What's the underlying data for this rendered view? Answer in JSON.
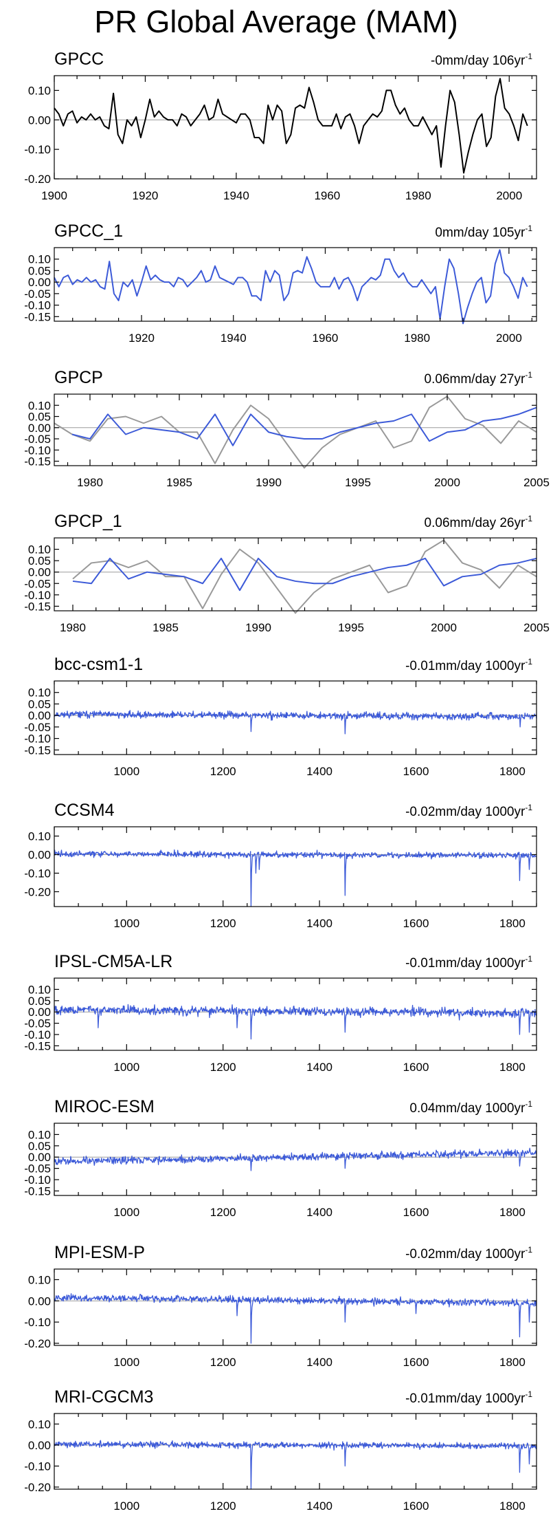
{
  "title": "PR Global Average (MAM)",
  "colors": {
    "obs": "#000000",
    "model": "#3c5ad8",
    "gray": "#999999",
    "zero": "#9a9a9a"
  },
  "chart_data": [
    {
      "type": "line",
      "title": "GPCC",
      "trend": "-0mm/day 106yr",
      "trend_sup": "-1",
      "xlim": [
        1900,
        2006
      ],
      "ylim": [
        -0.2,
        0.15
      ],
      "xticks": [
        "1900",
        "1920",
        "1940",
        "1960",
        "1980",
        "2000"
      ],
      "yticks": [
        "0.10",
        "0.00",
        "-0.10",
        "-0.20"
      ],
      "series": [
        {
          "name": "GPCC",
          "color": "#000000",
          "x_start": 1900,
          "x_step": 1,
          "values": [
            0.04,
            0.02,
            -0.02,
            0.02,
            0.03,
            -0.01,
            0.01,
            0.0,
            0.02,
            0.0,
            0.01,
            -0.02,
            -0.03,
            0.09,
            -0.05,
            -0.08,
            0.0,
            -0.02,
            0.01,
            -0.06,
            0.0,
            0.07,
            0.01,
            0.03,
            0.01,
            0.0,
            0.0,
            -0.02,
            0.02,
            0.01,
            -0.02,
            0.0,
            0.02,
            0.05,
            0.0,
            0.01,
            0.07,
            0.02,
            0.01,
            0.0,
            -0.01,
            0.02,
            0.02,
            0.0,
            -0.06,
            -0.06,
            -0.08,
            0.05,
            0.0,
            0.05,
            0.03,
            -0.08,
            -0.05,
            0.04,
            0.05,
            0.04,
            0.11,
            0.06,
            0.0,
            -0.02,
            -0.02,
            -0.02,
            0.02,
            -0.03,
            0.01,
            0.02,
            -0.02,
            -0.08,
            -0.02,
            0.0,
            0.02,
            0.01,
            0.03,
            0.1,
            0.1,
            0.05,
            0.02,
            0.04,
            0.0,
            -0.02,
            -0.02,
            0.01,
            -0.02,
            -0.05,
            -0.02,
            -0.16,
            -0.02,
            0.1,
            0.06,
            -0.05,
            -0.18,
            -0.11,
            -0.05,
            0.0,
            0.02,
            -0.09,
            -0.06,
            0.08,
            0.14,
            0.04,
            0.02,
            -0.02,
            -0.07,
            0.02,
            -0.02
          ]
        }
      ]
    },
    {
      "type": "line",
      "title": "GPCC_1",
      "trend": "0mm/day 105yr",
      "trend_sup": "-1",
      "xlim": [
        1901,
        2006
      ],
      "ylim": [
        -0.17,
        0.15
      ],
      "xticks": [
        "1920",
        "1940",
        "1960",
        "1980",
        "2000"
      ],
      "yticks": [
        "0.10",
        "0.05",
        "0.00",
        "-0.05",
        "-0.10",
        "-0.15"
      ],
      "series": [
        {
          "name": "GPCC_1",
          "color": "#3c5ad8",
          "x_start": 1901,
          "x_step": 1,
          "values": [
            0.02,
            -0.02,
            0.02,
            0.03,
            -0.01,
            0.01,
            0.0,
            0.02,
            0.0,
            0.01,
            -0.02,
            -0.03,
            0.09,
            -0.05,
            -0.08,
            0.0,
            -0.02,
            0.01,
            -0.06,
            0.0,
            0.07,
            0.01,
            0.03,
            0.01,
            0.0,
            0.0,
            -0.02,
            0.02,
            0.01,
            -0.02,
            0.0,
            0.02,
            0.05,
            0.0,
            0.01,
            0.07,
            0.02,
            0.01,
            0.0,
            -0.01,
            0.02,
            0.02,
            0.0,
            -0.06,
            -0.06,
            -0.08,
            0.05,
            0.0,
            0.05,
            0.03,
            -0.08,
            -0.05,
            0.04,
            0.05,
            0.04,
            0.11,
            0.06,
            0.0,
            -0.02,
            -0.02,
            -0.02,
            0.02,
            -0.03,
            0.01,
            0.02,
            -0.02,
            -0.08,
            -0.02,
            0.0,
            0.02,
            0.01,
            0.03,
            0.1,
            0.1,
            0.05,
            0.02,
            0.04,
            0.0,
            -0.02,
            -0.02,
            0.01,
            -0.02,
            -0.05,
            -0.02,
            -0.16,
            -0.02,
            0.1,
            0.06,
            -0.05,
            -0.18,
            -0.11,
            -0.05,
            0.0,
            0.02,
            -0.09,
            -0.06,
            0.08,
            0.14,
            0.04,
            0.02,
            -0.02,
            -0.07,
            0.02,
            -0.02
          ]
        }
      ]
    },
    {
      "type": "line",
      "title": "GPCP",
      "trend": "0.06mm/day 27yr",
      "trend_sup": "-1",
      "xlim": [
        1978,
        2005
      ],
      "ylim": [
        -0.17,
        0.15
      ],
      "xticks": [
        "1980",
        "1985",
        "1990",
        "1995",
        "2000",
        "2005"
      ],
      "yticks": [
        "0.10",
        "0.05",
        "0.00",
        "-0.05",
        "-0.10",
        "-0.15"
      ],
      "series": [
        {
          "name": "GPCP (gray)",
          "color": "#999999",
          "x_start": 1978,
          "x_step": 1,
          "values": [
            0.02,
            -0.03,
            -0.06,
            0.04,
            0.05,
            0.02,
            0.05,
            -0.02,
            -0.02,
            -0.16,
            -0.01,
            0.1,
            0.04,
            -0.07,
            -0.18,
            -0.09,
            -0.03,
            0.0,
            0.03,
            -0.09,
            -0.06,
            0.09,
            0.14,
            0.04,
            0.01,
            -0.07,
            0.03,
            -0.02
          ]
        },
        {
          "name": "GPCP (blue)",
          "color": "#3c5ad8",
          "x_start": 1979,
          "x_step": 1,
          "values": [
            -0.03,
            -0.05,
            0.06,
            -0.03,
            0.0,
            -0.01,
            -0.02,
            -0.05,
            0.06,
            -0.08,
            0.06,
            -0.02,
            -0.04,
            -0.05,
            -0.05,
            -0.02,
            0.0,
            0.02,
            0.03,
            0.06,
            -0.06,
            -0.02,
            -0.01,
            0.03,
            0.04,
            0.06,
            0.09
          ]
        }
      ]
    },
    {
      "type": "line",
      "title": "GPCP_1",
      "trend": "0.06mm/day 26yr",
      "trend_sup": "-1",
      "xlim": [
        1979,
        2005
      ],
      "ylim": [
        -0.17,
        0.15
      ],
      "xticks": [
        "1980",
        "1985",
        "1990",
        "1995",
        "2000",
        "2005"
      ],
      "yticks": [
        "0.10",
        "0.05",
        "0.00",
        "-0.05",
        "-0.10",
        "-0.15"
      ],
      "series": [
        {
          "name": "GPCP_1 (gray)",
          "color": "#999999",
          "x_start": 1980,
          "x_step": 1,
          "values": [
            -0.03,
            0.04,
            0.05,
            0.02,
            0.05,
            -0.02,
            -0.02,
            -0.16,
            -0.01,
            0.1,
            0.04,
            -0.07,
            -0.18,
            -0.09,
            -0.03,
            0.0,
            0.03,
            -0.09,
            -0.06,
            0.09,
            0.14,
            0.04,
            0.01,
            -0.07,
            0.03,
            -0.02
          ]
        },
        {
          "name": "GPCP_1 (blue)",
          "color": "#3c5ad8",
          "x_start": 1980,
          "x_step": 1,
          "values": [
            -0.04,
            -0.05,
            0.06,
            -0.03,
            0.0,
            -0.01,
            -0.02,
            -0.05,
            0.06,
            -0.08,
            0.06,
            -0.02,
            -0.04,
            -0.05,
            -0.05,
            -0.02,
            0.0,
            0.02,
            0.03,
            0.06,
            -0.06,
            -0.02,
            -0.01,
            0.03,
            0.04,
            0.06
          ]
        }
      ]
    },
    {
      "type": "line",
      "title": "bcc-csm1-1",
      "trend": "-0.01mm/day 1000yr",
      "trend_sup": "-1",
      "xlim": [
        850,
        1850
      ],
      "ylim": [
        -0.17,
        0.15
      ],
      "xticks": [
        "1000",
        "1200",
        "1400",
        "1600",
        "1800"
      ],
      "yticks": [
        "0.10",
        "0.05",
        "0.00",
        "-0.05",
        "-0.10",
        "-0.15"
      ],
      "series": [
        {
          "name": "bcc-csm1-1",
          "color": "#3c5ad8",
          "x_start": 850,
          "x_step": 1,
          "noise": 0.012,
          "trend": [
            0.005,
            -0.005
          ],
          "spikes": [
            [
              1258,
              -0.07
            ],
            [
              1453,
              -0.08
            ],
            [
              1816,
              -0.05
            ]
          ],
          "seed": 11
        }
      ]
    },
    {
      "type": "line",
      "title": "CCSM4",
      "trend": "-0.02mm/day 1000yr",
      "trend_sup": "-1",
      "xlim": [
        850,
        1850
      ],
      "ylim": [
        -0.28,
        0.15
      ],
      "xticks": [
        "1000",
        "1200",
        "1400",
        "1600",
        "1800"
      ],
      "yticks": [
        "0.10",
        "0.00",
        "-0.10",
        "-0.20"
      ],
      "series": [
        {
          "name": "CCSM4",
          "color": "#3c5ad8",
          "x_start": 850,
          "x_step": 1,
          "noise": 0.013,
          "trend": [
            0.005,
            -0.005
          ],
          "spikes": [
            [
              1258,
              -0.28
            ],
            [
              1268,
              -0.1
            ],
            [
              1275,
              -0.08
            ],
            [
              1453,
              -0.22
            ],
            [
              1815,
              -0.14
            ],
            [
              1835,
              -0.08
            ]
          ],
          "seed": 22
        }
      ]
    },
    {
      "type": "line",
      "title": "IPSL-CM5A-LR",
      "trend": "-0.01mm/day 1000yr",
      "trend_sup": "-1",
      "xlim": [
        850,
        1850
      ],
      "ylim": [
        -0.17,
        0.15
      ],
      "xticks": [
        "1000",
        "1200",
        "1400",
        "1600",
        "1800"
      ],
      "yticks": [
        "0.10",
        "0.05",
        "0.00",
        "-0.05",
        "-0.10",
        "-0.15"
      ],
      "series": [
        {
          "name": "IPSL-CM5A-LR",
          "color": "#3c5ad8",
          "x_start": 850,
          "x_step": 1,
          "noise": 0.016,
          "trend": [
            0.01,
            -0.005
          ],
          "spikes": [
            [
              941,
              -0.07
            ],
            [
              1229,
              -0.07
            ],
            [
              1258,
              -0.12
            ],
            [
              1453,
              -0.09
            ],
            [
              1815,
              -0.1
            ],
            [
              1835,
              -0.09
            ]
          ],
          "seed": 33
        }
      ]
    },
    {
      "type": "line",
      "title": "MIROC-ESM",
      "trend": "0.04mm/day 1000yr",
      "trend_sup": "-1",
      "xlim": [
        850,
        1850
      ],
      "ylim": [
        -0.17,
        0.15
      ],
      "xticks": [
        "1000",
        "1200",
        "1400",
        "1600",
        "1800"
      ],
      "yticks": [
        "0.10",
        "0.05",
        "0.00",
        "-0.05",
        "-0.10",
        "-0.15"
      ],
      "series": [
        {
          "name": "MIROC-ESM",
          "color": "#3c5ad8",
          "x_start": 850,
          "x_step": 1,
          "noise": 0.014,
          "trend": [
            -0.02,
            0.02
          ],
          "spikes": [
            [
              1258,
              -0.06
            ],
            [
              1453,
              -0.05
            ],
            [
              1815,
              -0.04
            ]
          ],
          "seed": 44
        }
      ]
    },
    {
      "type": "line",
      "title": "MPI-ESM-P",
      "trend": "-0.02mm/day 1000yr",
      "trend_sup": "-1",
      "xlim": [
        850,
        1850
      ],
      "ylim": [
        -0.21,
        0.15
      ],
      "xticks": [
        "1000",
        "1200",
        "1400",
        "1600",
        "1800"
      ],
      "yticks": [
        "0.10",
        "0.00",
        "-0.10",
        "-0.20"
      ],
      "series": [
        {
          "name": "MPI-ESM-P",
          "color": "#3c5ad8",
          "x_start": 850,
          "x_step": 1,
          "noise": 0.013,
          "trend": [
            0.015,
            -0.01
          ],
          "spikes": [
            [
              1229,
              -0.07
            ],
            [
              1258,
              -0.2
            ],
            [
              1453,
              -0.1
            ],
            [
              1600,
              -0.06
            ],
            [
              1815,
              -0.17
            ],
            [
              1835,
              -0.1
            ]
          ],
          "seed": 55
        }
      ]
    },
    {
      "type": "line",
      "title": "MRI-CGCM3",
      "trend": "-0.01mm/day 1000yr",
      "trend_sup": "-1",
      "xlim": [
        850,
        1850
      ],
      "ylim": [
        -0.21,
        0.15
      ],
      "xticks": [
        "1000",
        "1200",
        "1400",
        "1600",
        "1800"
      ],
      "yticks": [
        "0.10",
        "0.00",
        "-0.10",
        "-0.20"
      ],
      "series": [
        {
          "name": "MRI-CGCM3",
          "color": "#3c5ad8",
          "x_start": 850,
          "x_step": 1,
          "noise": 0.012,
          "trend": [
            0.005,
            -0.005
          ],
          "spikes": [
            [
              1258,
              -0.21
            ],
            [
              1453,
              -0.1
            ],
            [
              1815,
              -0.13
            ],
            [
              1835,
              -0.09
            ]
          ],
          "seed": 66
        }
      ]
    }
  ]
}
